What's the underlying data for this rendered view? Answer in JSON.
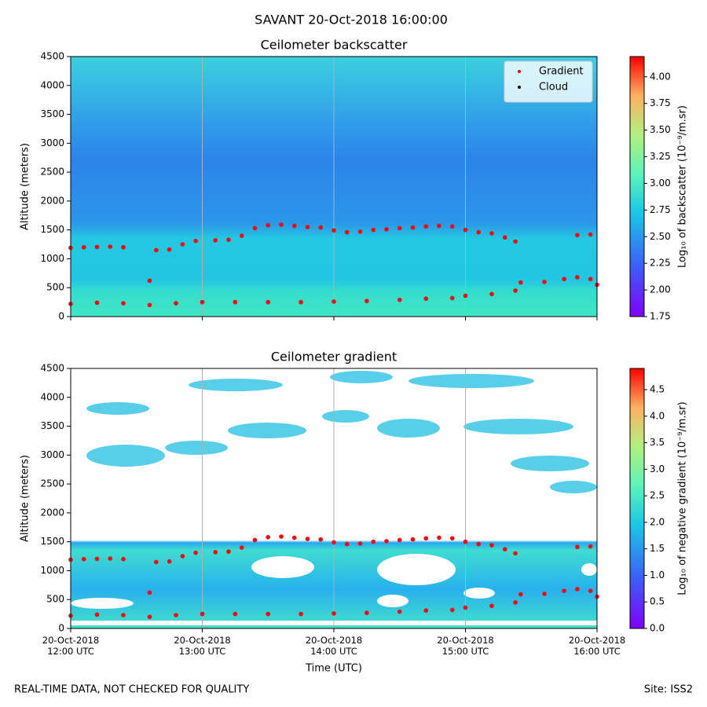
{
  "header": {
    "title": "SAVANT 20-Oct-2018 16:00:00",
    "note": "REAL-TIME DATA, NOT CHECKED FOR QUALITY",
    "site": "Site: ISS2"
  },
  "chart_data": [
    {
      "type": "scatter",
      "title": "Ceilometer backscatter",
      "ylabel": "Altitude (meters)",
      "xlim": [
        12,
        16
      ],
      "ylim": [
        0,
        4500
      ],
      "yticks": [
        0,
        500,
        1000,
        1500,
        2000,
        2500,
        3000,
        3500,
        4000,
        4500
      ],
      "grid": true,
      "legend": "upper right",
      "colorbar": {
        "label": "Log₁₀ of backscatter (10⁻⁹/m.sr)",
        "lim": [
          1.75,
          4.19
        ],
        "ticks": [
          {
            "value": 1.75,
            "label": "1.75"
          },
          {
            "value": 2,
            "label": "2.00"
          },
          {
            "value": 2.25,
            "label": "2.25"
          },
          {
            "value": 2.5,
            "label": "2.50"
          },
          {
            "value": 2.75,
            "label": "2.75"
          },
          {
            "value": 3,
            "label": "3.00"
          },
          {
            "value": 3.25,
            "label": "3.25"
          },
          {
            "value": 3.5,
            "label": "3.50"
          },
          {
            "value": 3.75,
            "label": "3.75"
          },
          {
            "value": 4,
            "label": "4.00"
          }
        ]
      },
      "series": [
        {
          "name": "Gradient",
          "color": "#ff0000",
          "x": [
            12.0,
            12.1,
            12.2,
            12.3,
            12.4,
            12.65,
            12.75,
            12.85,
            12.95,
            13.1,
            13.2,
            13.3,
            13.4,
            13.5,
            13.6,
            13.7,
            13.8,
            13.9,
            14.0,
            14.1,
            14.2,
            14.3,
            14.4,
            14.5,
            14.6,
            14.7,
            14.8,
            14.9,
            15.0,
            15.1,
            15.2,
            15.3,
            15.38,
            15.85,
            15.95,
            12.6,
            12.0,
            12.2,
            12.4,
            12.6,
            12.8,
            13.0,
            13.25,
            13.5,
            13.75,
            14.0,
            14.25,
            14.5,
            14.7,
            14.9,
            15.0,
            15.2,
            15.38,
            15.42,
            15.6,
            15.75,
            15.85,
            15.95,
            16.0
          ],
          "y": [
            1190,
            1200,
            1205,
            1210,
            1200,
            1150,
            1160,
            1250,
            1310,
            1320,
            1330,
            1400,
            1530,
            1580,
            1590,
            1570,
            1550,
            1540,
            1490,
            1460,
            1470,
            1500,
            1510,
            1530,
            1540,
            1560,
            1570,
            1560,
            1500,
            1460,
            1440,
            1370,
            1300,
            1410,
            1420,
            620,
            220,
            240,
            230,
            200,
            230,
            250,
            250,
            250,
            250,
            260,
            270,
            290,
            310,
            320,
            360,
            390,
            450,
            590,
            600,
            650,
            680,
            650,
            550
          ]
        },
        {
          "name": "Cloud",
          "color": "#000000",
          "x": [],
          "y": []
        }
      ]
    },
    {
      "type": "scatter",
      "title": "Ceilometer gradient",
      "ylabel": "Altitude (meters)",
      "xlabel": "Time (UTC)",
      "xlim": [
        12,
        16
      ],
      "ylim": [
        0,
        4500
      ],
      "yticks": [
        0,
        500,
        1000,
        1500,
        2000,
        2500,
        3000,
        3500,
        4000,
        4500
      ],
      "xticks": [
        {
          "value": 12,
          "label": "20-Oct-2018\n12:00 UTC"
        },
        {
          "value": 13,
          "label": "20-Oct-2018\n13:00 UTC"
        },
        {
          "value": 14,
          "label": "20-Oct-2018\n14:00 UTC"
        },
        {
          "value": 15,
          "label": "20-Oct-2018\n15:00 UTC"
        },
        {
          "value": 16,
          "label": "20-Oct-2018\n16:00 UTC"
        }
      ],
      "grid": true,
      "colorbar": {
        "label": "Log₁₀ of negative gradient (10⁻⁹/m.sr)",
        "lim": [
          0,
          4.9
        ],
        "ticks": [
          {
            "value": 0,
            "label": "0.0"
          },
          {
            "value": 0.5,
            "label": "0.5"
          },
          {
            "value": 1,
            "label": "1.0"
          },
          {
            "value": 1.5,
            "label": "1.5"
          },
          {
            "value": 2,
            "label": "2.0"
          },
          {
            "value": 2.5,
            "label": "2.5"
          },
          {
            "value": 3,
            "label": "3.0"
          },
          {
            "value": 3.5,
            "label": "3.5"
          },
          {
            "value": 4,
            "label": "4.0"
          },
          {
            "value": 4.5,
            "label": "4.5"
          }
        ]
      },
      "series": [
        {
          "name": "Gradient",
          "color": "#ff0000",
          "x": [
            12.0,
            12.1,
            12.2,
            12.3,
            12.4,
            12.65,
            12.75,
            12.85,
            12.95,
            13.1,
            13.2,
            13.3,
            13.4,
            13.5,
            13.6,
            13.7,
            13.8,
            13.9,
            14.0,
            14.1,
            14.2,
            14.3,
            14.4,
            14.5,
            14.6,
            14.7,
            14.8,
            14.9,
            15.0,
            15.1,
            15.2,
            15.3,
            15.38,
            15.85,
            15.95,
            12.6,
            12.0,
            12.2,
            12.4,
            12.6,
            12.8,
            13.0,
            13.25,
            13.5,
            13.75,
            14.0,
            14.25,
            14.5,
            14.7,
            14.9,
            15.0,
            15.2,
            15.38,
            15.42,
            15.6,
            15.75,
            15.85,
            15.95,
            16.0
          ],
          "y": [
            1190,
            1200,
            1205,
            1210,
            1200,
            1150,
            1160,
            1250,
            1310,
            1320,
            1330,
            1400,
            1530,
            1580,
            1590,
            1570,
            1550,
            1540,
            1490,
            1460,
            1470,
            1500,
            1510,
            1530,
            1540,
            1560,
            1570,
            1560,
            1500,
            1460,
            1440,
            1370,
            1300,
            1410,
            1420,
            620,
            220,
            240,
            230,
            200,
            230,
            250,
            250,
            250,
            250,
            260,
            270,
            290,
            310,
            320,
            360,
            390,
            450,
            590,
            600,
            650,
            680,
            650,
            550
          ]
        }
      ]
    }
  ]
}
